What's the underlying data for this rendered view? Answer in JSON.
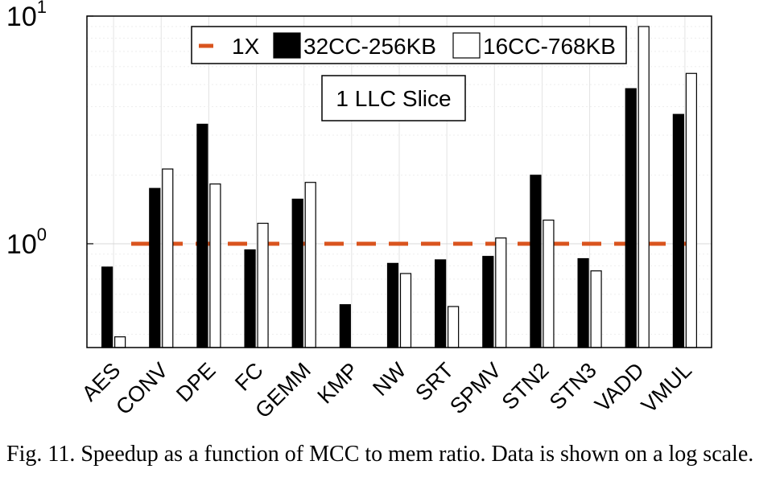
{
  "chart_data": {
    "type": "bar",
    "yscale": "log",
    "ylim": [
      0.35,
      10
    ],
    "ytick_labels": [
      {
        "base": "10",
        "exp": "0",
        "value": 1
      },
      {
        "base": "10",
        "exp": "1",
        "value": 10
      }
    ],
    "grid": true,
    "legend_position": "top",
    "categories": [
      "AES",
      "CONV",
      "DPE",
      "FC",
      "GEMM",
      "KMP",
      "NW",
      "SRT",
      "SPMV",
      "STN2",
      "STN3",
      "VADD",
      "VMUL"
    ],
    "series": [
      {
        "name": "32CC-256KB",
        "color": "#000000",
        "values": [
          0.79,
          1.75,
          3.35,
          0.94,
          1.57,
          0.54,
          0.82,
          0.85,
          0.88,
          2.0,
          0.86,
          4.8,
          3.7
        ]
      },
      {
        "name": "16CC-768KB",
        "color": "#ffffff",
        "values": [
          0.39,
          2.13,
          1.83,
          1.23,
          1.86,
          null,
          0.74,
          0.53,
          1.06,
          1.27,
          0.76,
          9.0,
          5.6
        ]
      }
    ],
    "reference_line": {
      "name": "1X",
      "value": 1,
      "color": "#d9541e"
    },
    "annotation": "1 LLC Slice"
  },
  "caption": "Fig. 11.  Speedup as a function of MCC to mem ratio. Data is shown on a log scale."
}
